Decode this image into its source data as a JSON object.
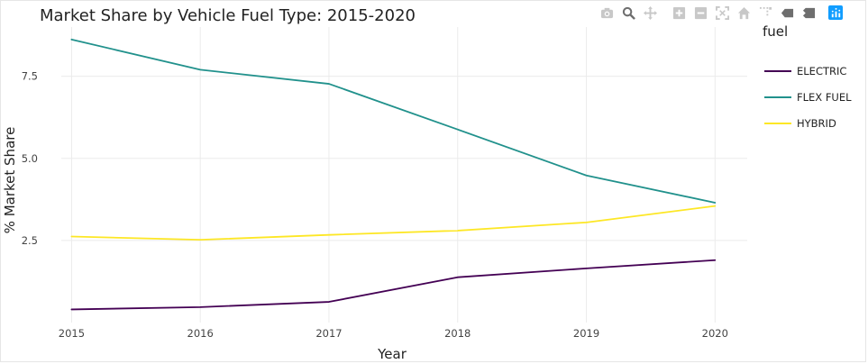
{
  "toolbar": {
    "buttons": [
      {
        "name": "camera-icon",
        "kind": "camera"
      },
      {
        "name": "zoom-icon",
        "kind": "zoom",
        "active": true
      },
      {
        "name": "pan-icon",
        "kind": "pan"
      },
      {
        "gap": true
      },
      {
        "name": "zoom-in-icon",
        "kind": "plus"
      },
      {
        "name": "zoom-out-icon",
        "kind": "minus"
      },
      {
        "name": "autoscale-icon",
        "kind": "autoscale"
      },
      {
        "name": "home-icon",
        "kind": "home"
      },
      {
        "name": "spike-lines-icon",
        "kind": "spike"
      },
      {
        "name": "hover-closest-icon",
        "kind": "tag"
      },
      {
        "name": "hover-compare-icon",
        "kind": "compare"
      },
      {
        "name": "plotly-logo-icon",
        "kind": "logo"
      }
    ]
  },
  "chart_data": {
    "type": "line",
    "title": "Market Share by Vehicle Fuel Type: 2015-2020",
    "xlabel": "Year",
    "ylabel": "% Market Share",
    "x": [
      2015,
      2016,
      2017,
      2018,
      2019,
      2020
    ],
    "x_ticks": [
      "2015",
      "2016",
      "2017",
      "2018",
      "2019",
      "2020"
    ],
    "y_ticks": [
      2.5,
      5.0,
      7.5
    ],
    "y_tick_labels": [
      "2.5",
      "5.0",
      "7.5"
    ],
    "xlim": [
      2014.92,
      2020.25
    ],
    "ylim": [
      0.0,
      9.0
    ],
    "grid": true,
    "legend_title": "fuel",
    "legend_position": "right",
    "series": [
      {
        "name": "ELECTRIC",
        "color": "#440154",
        "values": [
          0.4,
          0.47,
          0.63,
          1.38,
          1.65,
          1.9
        ]
      },
      {
        "name": "FLEX FUEL",
        "color": "#21918c",
        "values": [
          8.62,
          7.7,
          7.27,
          5.88,
          4.48,
          3.65
        ]
      },
      {
        "name": "HYBRID",
        "color": "#fde725",
        "values": [
          2.62,
          2.52,
          2.67,
          2.8,
          3.05,
          3.55
        ]
      }
    ]
  }
}
